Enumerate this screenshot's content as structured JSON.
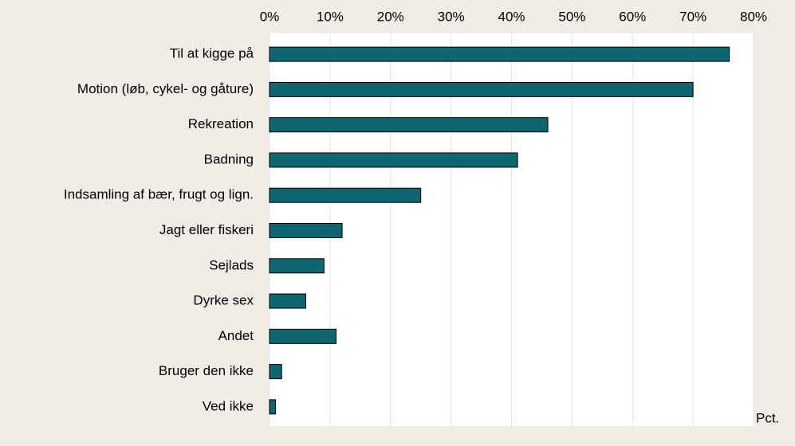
{
  "chart_data": {
    "type": "bar",
    "orientation": "horizontal",
    "categories": [
      "Til at kigge på",
      "Motion (løb, cykel- og gåture)",
      "Rekreation",
      "Badning",
      "Indsamling af bær, frugt og lign.",
      "Jagt eller fiskeri",
      "Sejlads",
      "Dyrke sex",
      "Andet",
      "Bruger den ikke",
      "Ved ikke"
    ],
    "values": [
      76,
      70,
      46,
      41,
      25,
      12,
      9,
      6,
      11,
      2,
      1
    ],
    "color": "#0e6670",
    "xlabel": "Pct.",
    "xlim": [
      0,
      80
    ],
    "xticks": [
      {
        "value": 0,
        "label": "0%"
      },
      {
        "value": 10,
        "label": "10%"
      },
      {
        "value": 20,
        "label": "20%"
      },
      {
        "value": 30,
        "label": "30%"
      },
      {
        "value": 40,
        "label": "40%"
      },
      {
        "value": 50,
        "label": "50%"
      },
      {
        "value": 60,
        "label": "60%"
      },
      {
        "value": 70,
        "label": "70%"
      },
      {
        "value": 80,
        "label": "80%"
      }
    ],
    "grid": true
  }
}
